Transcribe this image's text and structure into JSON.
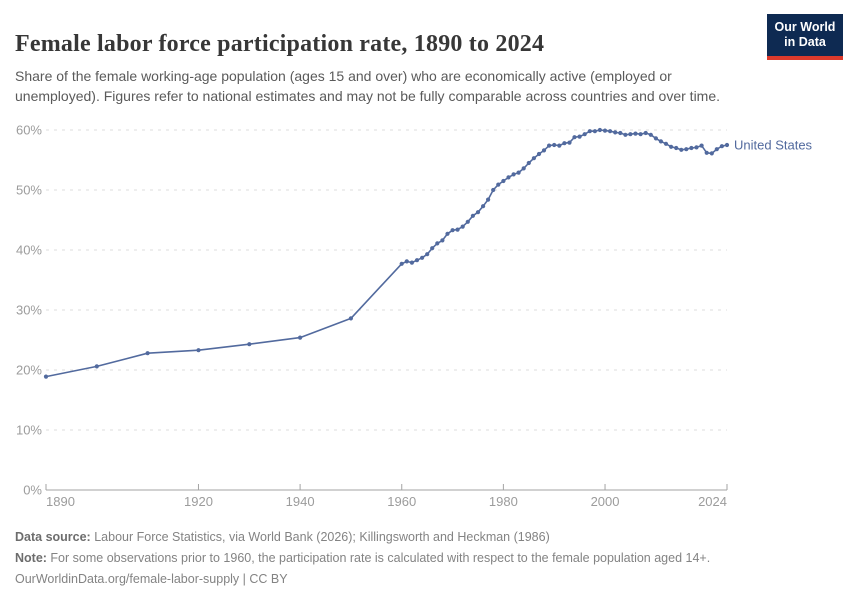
{
  "header": {
    "title": "Female labor force participation rate, 1890 to 2024",
    "subtitle": "Share of the female working-age population (ages 15 and over) who are economically active (employed or unemployed). Figures refer to national estimates and may not be fully comparable across countries and over time.",
    "logo": {
      "line1": "Our World",
      "line2": "in Data",
      "bg_color": "#0e2a52",
      "accent_color": "#dc3a2c"
    }
  },
  "chart_data": {
    "type": "line",
    "title": "Female labor force participation rate, 1890 to 2024",
    "xlabel": "",
    "ylabel": "",
    "xlim": [
      1890,
      2024
    ],
    "ylim": [
      0,
      60
    ],
    "x_ticks": [
      1890,
      1920,
      1940,
      1960,
      1980,
      2000,
      2024
    ],
    "y_ticks": [
      0,
      10,
      20,
      30,
      40,
      50,
      60
    ],
    "y_tick_format": "{}%",
    "grid": "horizontal-dashed",
    "legend_position": "end-of-line-label",
    "colors": {
      "grid": "#dcdcdc",
      "axis": "#a3a3a3",
      "tick_text": "#9c9c9c"
    },
    "series": [
      {
        "name": "United States",
        "color": "#526a9e",
        "points": [
          [
            1890,
            18.9
          ],
          [
            1900,
            20.6
          ],
          [
            1910,
            22.8
          ],
          [
            1920,
            23.3
          ],
          [
            1930,
            24.3
          ],
          [
            1940,
            25.4
          ],
          [
            1950,
            28.6
          ],
          [
            1960,
            37.7
          ],
          [
            1961,
            38.1
          ],
          [
            1962,
            37.9
          ],
          [
            1963,
            38.3
          ],
          [
            1964,
            38.7
          ],
          [
            1965,
            39.3
          ],
          [
            1966,
            40.3
          ],
          [
            1967,
            41.1
          ],
          [
            1968,
            41.6
          ],
          [
            1969,
            42.7
          ],
          [
            1970,
            43.3
          ],
          [
            1971,
            43.4
          ],
          [
            1972,
            43.9
          ],
          [
            1973,
            44.7
          ],
          [
            1974,
            45.7
          ],
          [
            1975,
            46.3
          ],
          [
            1976,
            47.3
          ],
          [
            1977,
            48.4
          ],
          [
            1978,
            50.0
          ],
          [
            1979,
            50.9
          ],
          [
            1980,
            51.5
          ],
          [
            1981,
            52.1
          ],
          [
            1982,
            52.6
          ],
          [
            1983,
            52.9
          ],
          [
            1984,
            53.6
          ],
          [
            1985,
            54.5
          ],
          [
            1986,
            55.3
          ],
          [
            1987,
            56.0
          ],
          [
            1988,
            56.6
          ],
          [
            1989,
            57.4
          ],
          [
            1990,
            57.5
          ],
          [
            1991,
            57.4
          ],
          [
            1992,
            57.8
          ],
          [
            1993,
            57.9
          ],
          [
            1994,
            58.8
          ],
          [
            1995,
            58.9
          ],
          [
            1996,
            59.3
          ],
          [
            1997,
            59.8
          ],
          [
            1998,
            59.8
          ],
          [
            1999,
            60.0
          ],
          [
            2000,
            59.9
          ],
          [
            2001,
            59.8
          ],
          [
            2002,
            59.6
          ],
          [
            2003,
            59.5
          ],
          [
            2004,
            59.2
          ],
          [
            2005,
            59.3
          ],
          [
            2006,
            59.4
          ],
          [
            2007,
            59.3
          ],
          [
            2008,
            59.5
          ],
          [
            2009,
            59.2
          ],
          [
            2010,
            58.6
          ],
          [
            2011,
            58.1
          ],
          [
            2012,
            57.7
          ],
          [
            2013,
            57.2
          ],
          [
            2014,
            57.0
          ],
          [
            2015,
            56.7
          ],
          [
            2016,
            56.8
          ],
          [
            2017,
            57.0
          ],
          [
            2018,
            57.1
          ],
          [
            2019,
            57.4
          ],
          [
            2020,
            56.2
          ],
          [
            2021,
            56.1
          ],
          [
            2022,
            56.8
          ],
          [
            2023,
            57.3
          ],
          [
            2024,
            57.5
          ]
        ]
      }
    ]
  },
  "footer": {
    "source_label": "Data source:",
    "source_text": " Labour Force Statistics, via World Bank (2026); Killingsworth and Heckman (1986)",
    "note_label": "Note:",
    "note_text": " For some observations prior to 1960, the participation rate is calculated with respect to the female population aged 14+.",
    "url_line": "OurWorldinData.org/female-labor-supply | CC BY"
  }
}
